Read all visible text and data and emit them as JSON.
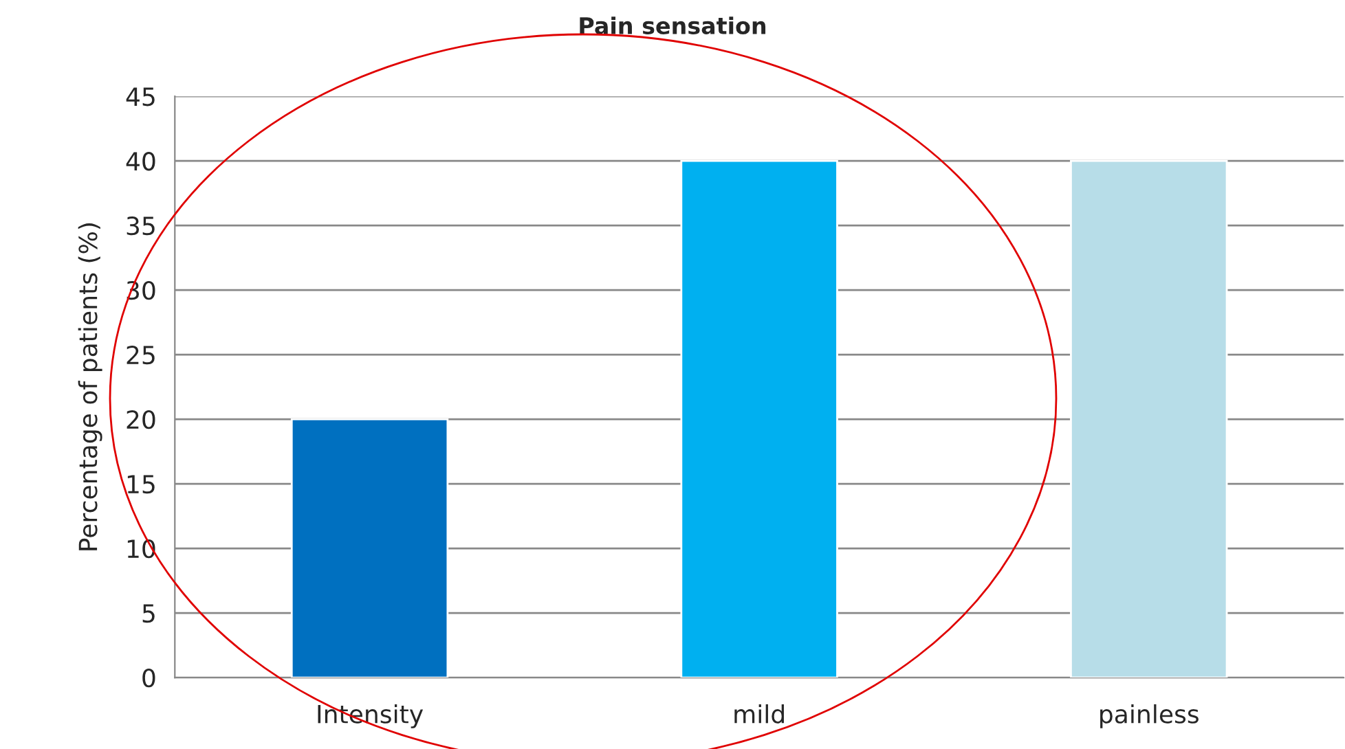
{
  "chart_data": {
    "type": "bar",
    "title": "Pain sensation",
    "ylabel": "Percentage of patients (%)",
    "categories": [
      "Intensity",
      "mild",
      "painless"
    ],
    "values": [
      20,
      40,
      40
    ],
    "colors": [
      "#0070c0",
      "#00b0f0",
      "#b7dde8"
    ],
    "ylim": [
      0,
      45
    ],
    "yticks": [
      0,
      5,
      10,
      15,
      20,
      25,
      30,
      35,
      40,
      45
    ],
    "grid": "y",
    "legend": false
  }
}
